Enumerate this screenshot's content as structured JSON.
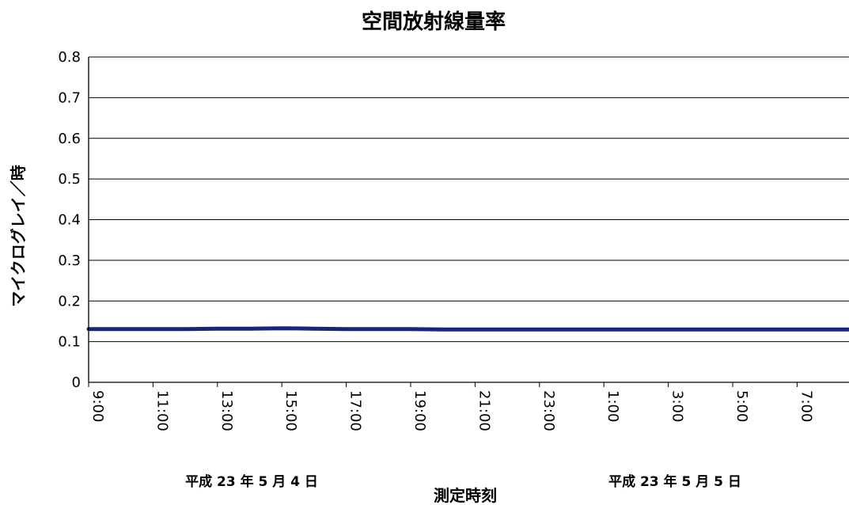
{
  "chart_data": {
    "type": "line",
    "title": "空間放射線量率",
    "xlabel": "測定時刻",
    "ylabel": "マイクログレイ／時",
    "ylim": [
      0,
      0.8
    ],
    "yticks": [
      "0",
      "0.1",
      "0.2",
      "0.3",
      "0.4",
      "0.5",
      "0.6",
      "0.7",
      "0.8"
    ],
    "xlim_hours": [
      0,
      23.8
    ],
    "xticks": [
      "9:00",
      "11:00",
      "13:00",
      "15:00",
      "17:00",
      "19:00",
      "21:00",
      "23:00",
      "1:00",
      "3:00",
      "5:00",
      "7:00"
    ],
    "date_labels": [
      "平成 23 年 5 月 4 日",
      "平成 23 年 5 月 5 日"
    ],
    "grid": true,
    "legend": "none",
    "series": [
      {
        "color": "#1a237e",
        "x": [
          "9:00",
          "10:00",
          "11:00",
          "12:00",
          "13:00",
          "14:00",
          "15:00",
          "16:00",
          "17:00",
          "18:00",
          "19:00",
          "20:00",
          "21:00",
          "22:00",
          "23:00",
          "0:00",
          "1:00",
          "2:00",
          "3:00",
          "4:00",
          "5:00",
          "6:00",
          "7:00",
          "8:00",
          "8:50"
        ],
        "values": [
          0.131,
          0.131,
          0.131,
          0.131,
          0.132,
          0.132,
          0.133,
          0.132,
          0.131,
          0.131,
          0.131,
          0.13,
          0.13,
          0.13,
          0.13,
          0.13,
          0.13,
          0.13,
          0.13,
          0.13,
          0.13,
          0.13,
          0.13,
          0.13,
          0.13
        ]
      }
    ]
  }
}
